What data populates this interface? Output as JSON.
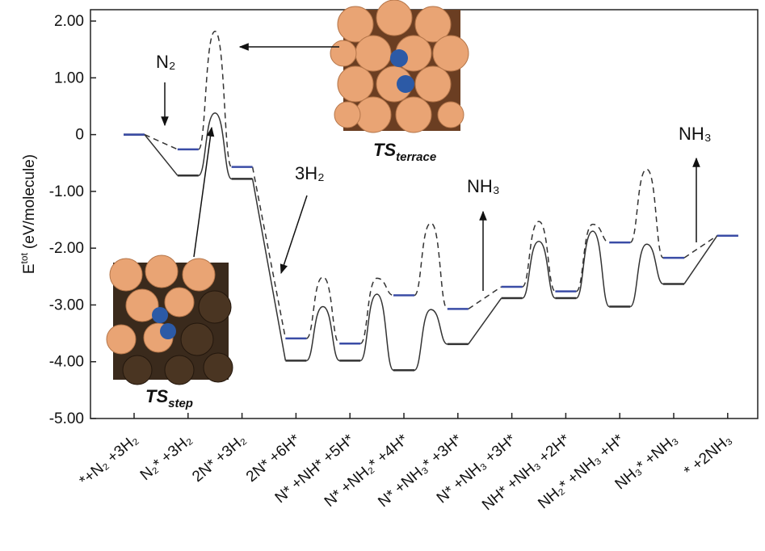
{
  "chart_data": {
    "type": "energy-profile",
    "y_label": {
      "main": "E",
      "sup": "tot",
      "rest": "(eV/molecule)"
    },
    "categories": [
      "*+N₂ +3H₂",
      "N₂* +3H₂",
      "2N* +3H₂",
      "2N* +6H*",
      "N* +NH* +5H*",
      "N* +NH₂* +4H*",
      "N* +NH₃* +3H*",
      "N* +NH₃ +3H*",
      "NH* +NH₃ +2H*",
      "NH₂* +NH₃ +H*",
      "NH₃* +NH₃",
      "* +2NH₃"
    ],
    "series": [
      {
        "color": "#333333",
        "dashed": false,
        "values": [
          0,
          -0.72,
          -0.78,
          -3.98,
          -3.98,
          -4.15,
          -3.69,
          -2.88,
          -2.88,
          -3.03,
          -2.63,
          -1.78
        ],
        "barriers": [
          null,
          0.38,
          null,
          -3.03,
          -2.81,
          -3.08,
          null,
          -1.88,
          -1.7,
          -1.93,
          null
        ]
      },
      {
        "color": "#3a4ca6",
        "dashed": true,
        "values": [
          0,
          -0.26,
          -0.57,
          -3.59,
          -3.68,
          -2.83,
          -3.07,
          -2.68,
          -2.76,
          -1.9,
          -2.17,
          -1.78
        ],
        "barriers": [
          null,
          1.82,
          null,
          -2.51,
          -2.53,
          -1.56,
          null,
          -1.53,
          -1.58,
          -0.61,
          null
        ]
      }
    ],
    "ylim": [
      -5,
      2.2
    ],
    "yticks": [
      {
        "value": 2,
        "label": "2.00"
      },
      {
        "value": 1,
        "label": "1.00"
      },
      0,
      {
        "value": -1,
        "label": "-1.00"
      },
      {
        "value": -2,
        "label": "-2.00"
      },
      {
        "value": -3,
        "label": "-3.00"
      },
      {
        "value": -4,
        "label": "-4.00"
      },
      {
        "value": -5,
        "label": "-5.00"
      }
    ],
    "annotations": {
      "n2": "N₂",
      "h2": "3H₂",
      "nh3_a": "NH₃",
      "nh3_b": "NH₃",
      "ts_terrace": {
        "main": "TS",
        "sub": "terrace"
      },
      "ts_step": {
        "main": "TS",
        "sub": "step"
      }
    }
  }
}
